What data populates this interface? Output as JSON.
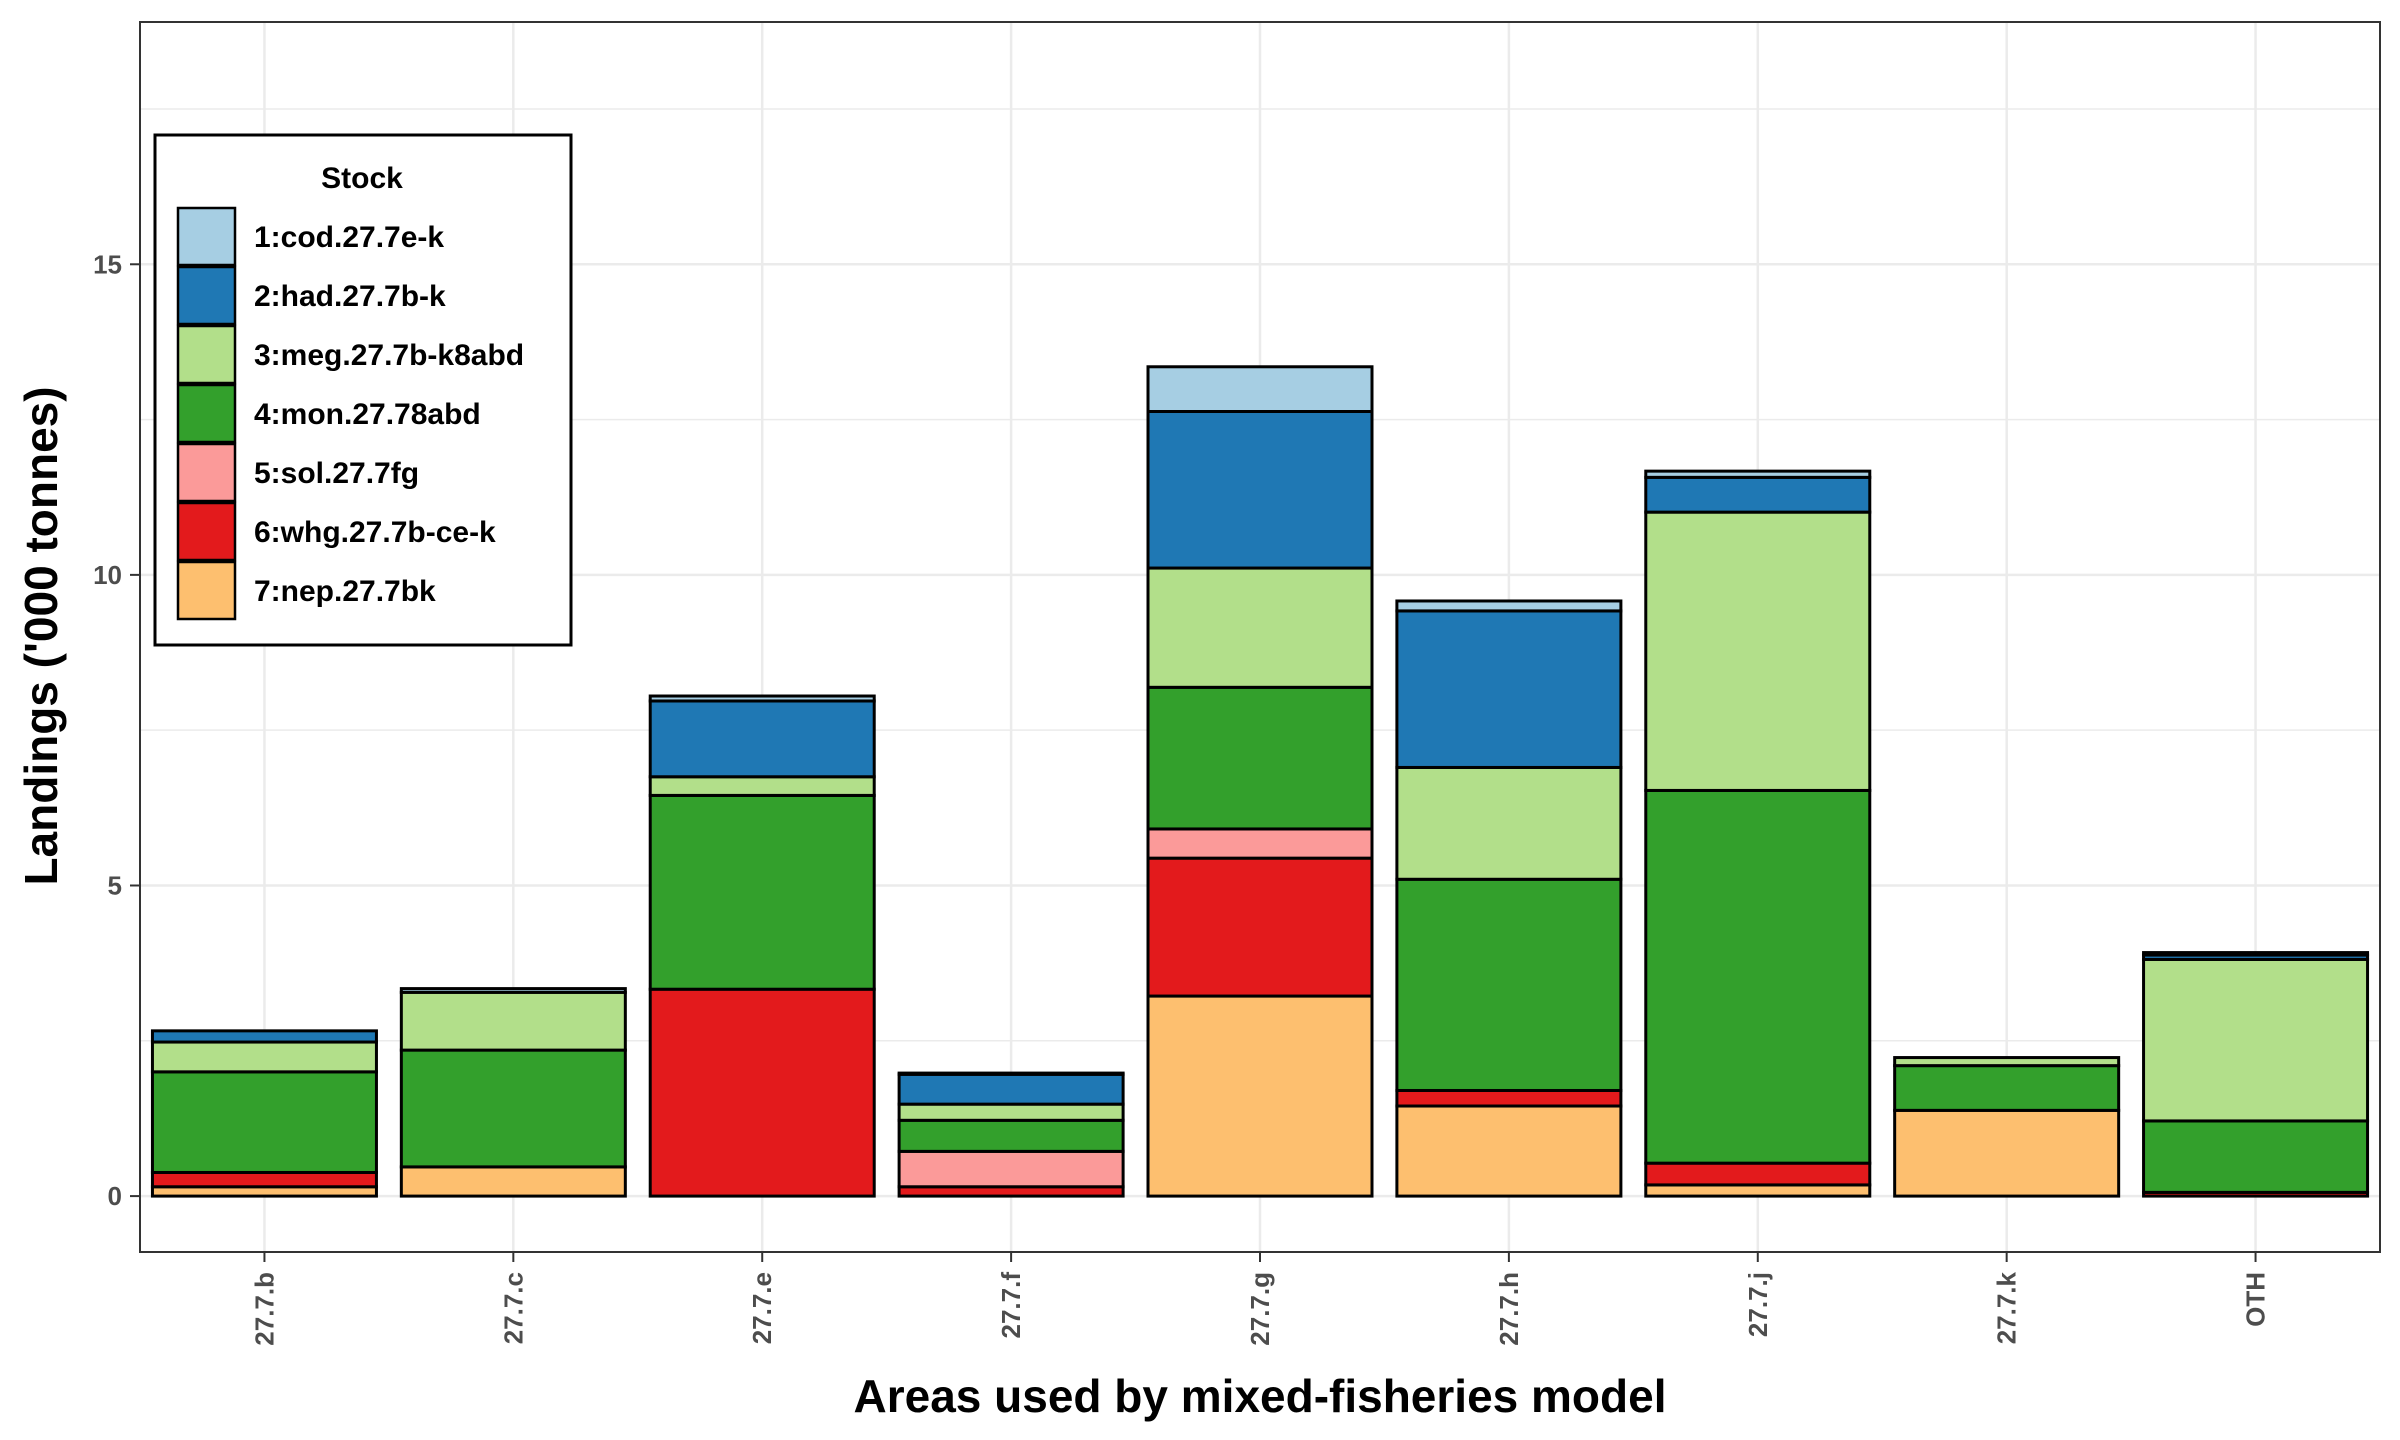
{
  "chart_data": {
    "type": "bar",
    "stacked": true,
    "xlabel": "Areas used by mixed-fisheries model",
    "ylabel": "Landings ('000 tonnes)",
    "ylim": [
      -0.9,
      18.9
    ],
    "yticks": [
      0,
      5,
      10,
      15
    ],
    "yticklabels": [
      "0",
      "5",
      "10",
      "15"
    ],
    "grid": true,
    "legend": {
      "title": "Stock",
      "position": "top-left"
    },
    "categories": [
      "27.7.b",
      "27.7.c",
      "27.7.e",
      "27.7.f",
      "27.7.g",
      "27.7.h",
      "27.7.j",
      "27.7.k",
      "OTH"
    ],
    "series": [
      {
        "name": "7:nep.27.7bk",
        "color": "#FDBF6F",
        "values": [
          0.15,
          0.47,
          0.0,
          0.0,
          3.22,
          1.45,
          0.18,
          1.38,
          0.0
        ]
      },
      {
        "name": "6:whg.27.7b-ce-k",
        "color": "#E31A1C",
        "values": [
          0.23,
          0.0,
          3.33,
          0.15,
          2.22,
          0.25,
          0.35,
          0.0,
          0.06
        ]
      },
      {
        "name": "5:sol.27.7fg",
        "color": "#FB9A99",
        "values": [
          0.0,
          0.0,
          0.0,
          0.57,
          0.47,
          0.0,
          0.0,
          0.0,
          0.0
        ]
      },
      {
        "name": "4:mon.27.78abd",
        "color": "#33A02C",
        "values": [
          1.62,
          1.88,
          3.12,
          0.5,
          2.28,
          3.4,
          6.0,
          0.72,
          1.15
        ]
      },
      {
        "name": "3:meg.27.7b-k8abd",
        "color": "#B2DF8A",
        "values": [
          0.48,
          0.93,
          0.3,
          0.26,
          1.92,
          1.8,
          4.48,
          0.13,
          2.6
        ]
      },
      {
        "name": "2:had.27.7b-k",
        "color": "#1F78B4",
        "values": [
          0.18,
          0.0,
          1.22,
          0.48,
          2.52,
          2.52,
          0.56,
          0.0,
          0.07
        ]
      },
      {
        "name": "1:cod.27.7e-k",
        "color": "#A6CEE3",
        "values": [
          0.0,
          0.06,
          0.08,
          0.02,
          0.72,
          0.16,
          0.1,
          0.0,
          0.04
        ]
      }
    ]
  }
}
